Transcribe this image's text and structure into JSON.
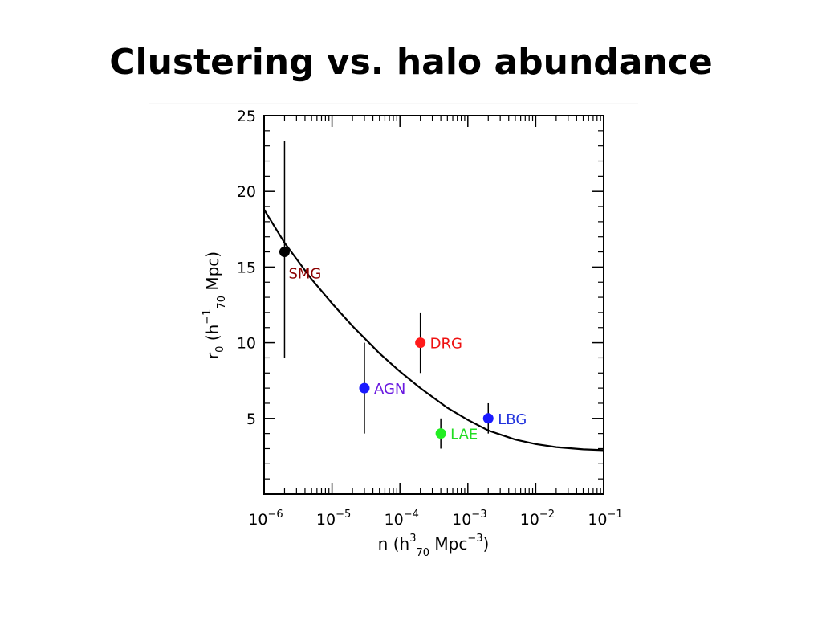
{
  "slide": {
    "title": "Clustering vs. halo abundance"
  },
  "chart_data": {
    "type": "scatter",
    "x_scale": "log",
    "xlim": [
      1e-06,
      0.1
    ],
    "ylim": [
      0,
      25
    ],
    "x_axis": {
      "label_main": "n (h",
      "label_sup": "3",
      "label_sub": "70",
      "label_tail": "Mpc",
      "label_tail_sup": "−3",
      "label_close": ")",
      "ticks": [
        {
          "value": 1e-06,
          "base": "10",
          "exp": "−6"
        },
        {
          "value": 1e-05,
          "base": "10",
          "exp": "−5"
        },
        {
          "value": 0.0001,
          "base": "10",
          "exp": "−4"
        },
        {
          "value": 0.001,
          "base": "10",
          "exp": "−3"
        },
        {
          "value": 0.01,
          "base": "10",
          "exp": "−2"
        },
        {
          "value": 0.1,
          "base": "10",
          "exp": "−1"
        }
      ]
    },
    "y_axis": {
      "label_r": "r",
      "label_r_sub": "0",
      "label_open": " (h",
      "label_sup": "−1",
      "label_sub": "70",
      "label_tail": " Mpc)",
      "ticks": [
        "5",
        "10",
        "15",
        "20",
        "25"
      ],
      "tick_values": [
        5,
        10,
        15,
        20,
        25
      ]
    },
    "points": [
      {
        "label": "SMG",
        "x": 2e-06,
        "y": 16,
        "y_low": 9,
        "y_high": 23.3,
        "color": "#000000",
        "label_color": "#8b0000"
      },
      {
        "label": "AGN",
        "x": 3e-05,
        "y": 7,
        "y_low": 4,
        "y_high": 10,
        "color": "#1a1aff",
        "label_color": "#6a1ae0"
      },
      {
        "label": "DRG",
        "x": 0.0002,
        "y": 10,
        "y_low": 8,
        "y_high": 12,
        "color": "#ff1a1a",
        "label_color": "#ee1111"
      },
      {
        "label": "LAE",
        "x": 0.0004,
        "y": 4,
        "y_low": 3,
        "y_high": 5,
        "color": "#22ee22",
        "label_color": "#22dd22"
      },
      {
        "label": "LBG",
        "x": 0.002,
        "y": 5,
        "y_low": 4,
        "y_high": 6,
        "color": "#1a1aff",
        "label_color": "#2233dd"
      }
    ],
    "model_curve": {
      "color": "#000000",
      "points": [
        [
          1e-06,
          18.8
        ],
        [
          2e-06,
          16.6
        ],
        [
          5e-06,
          14.2
        ],
        [
          1e-05,
          12.6
        ],
        [
          2e-05,
          11.1
        ],
        [
          5e-05,
          9.3
        ],
        [
          0.0001,
          8.1
        ],
        [
          0.0002,
          7.0
        ],
        [
          0.0005,
          5.7
        ],
        [
          0.001,
          4.9
        ],
        [
          0.002,
          4.2
        ],
        [
          0.005,
          3.6
        ],
        [
          0.01,
          3.3
        ],
        [
          0.02,
          3.1
        ],
        [
          0.05,
          2.95
        ],
        [
          0.1,
          2.9
        ]
      ]
    }
  }
}
